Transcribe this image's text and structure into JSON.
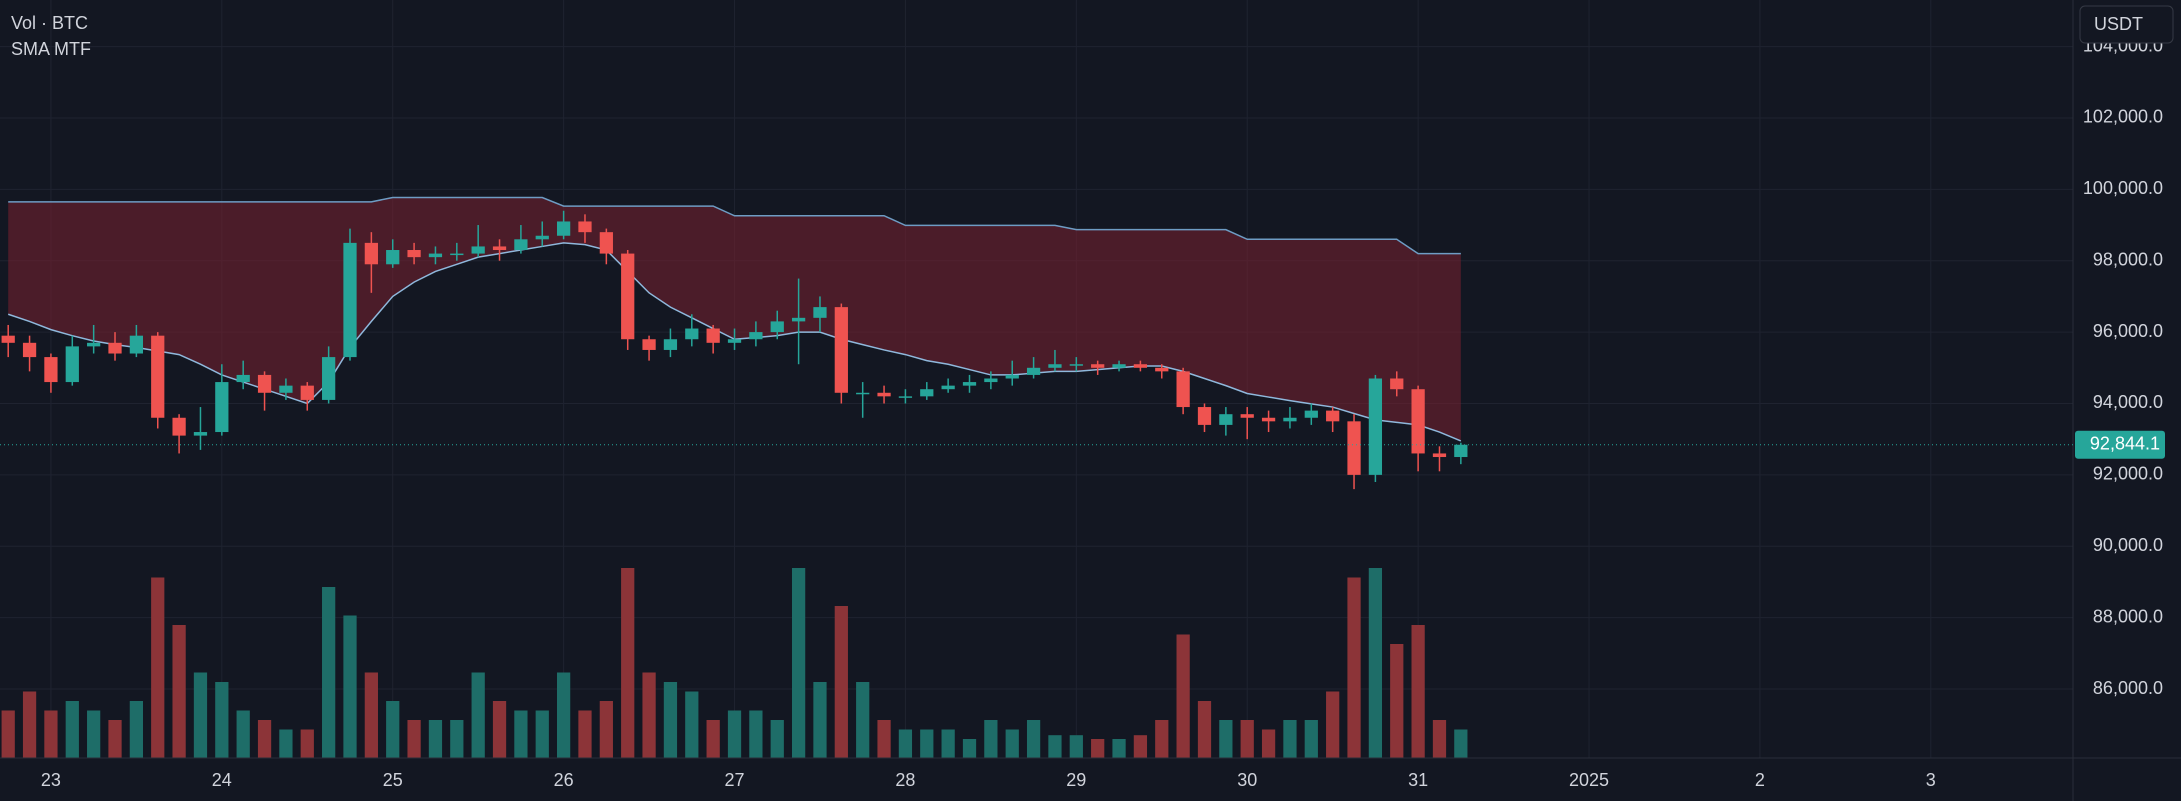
{
  "chart_data": {
    "type": "candlestick",
    "volume_title": "Vol · BTC",
    "indicator_title": "SMA MTF",
    "currency": "USDT",
    "last_price": {
      "value": 92844.1,
      "label": "92,844.1"
    },
    "up_color": "#26a69a",
    "down_color": "#ef5350",
    "volume_up_color": "#1e6d68",
    "volume_down_color": "#8c3438",
    "grid": true,
    "xlim": [
      22.702,
      34.832
    ],
    "ylim": [
      84067,
      105305
    ],
    "xticks": [
      23,
      24,
      25,
      26,
      27,
      28,
      29,
      30,
      31,
      {
        "value": 32,
        "label": "2025"
      },
      {
        "value": 33,
        "label": "2"
      },
      {
        "value": 34,
        "label": "3"
      }
    ],
    "yticks": [
      {
        "value": 86000,
        "label": "86,000.0"
      },
      {
        "value": 88000,
        "label": "88,000.0"
      },
      {
        "value": 90000,
        "label": "90,000.0"
      },
      {
        "value": 92000,
        "label": "92,000.0"
      },
      {
        "value": 94000,
        "label": "94,000.0"
      },
      {
        "value": 96000,
        "label": "96,000.0"
      },
      {
        "value": 98000,
        "label": "98,000.0"
      },
      {
        "value": 100000,
        "label": "100,000.0"
      },
      {
        "value": 102000,
        "label": "102,000.0"
      },
      {
        "value": 104000,
        "label": "104,000.0"
      }
    ],
    "x": [
      22.75,
      22.875,
      23,
      23.125,
      23.25,
      23.375,
      23.5,
      23.625,
      23.75,
      23.875,
      24,
      24.125,
      24.25,
      24.375,
      24.5,
      24.625,
      24.75,
      24.875,
      25,
      25.125,
      25.25,
      25.375,
      25.5,
      25.625,
      25.75,
      25.875,
      26,
      26.125,
      26.25,
      26.375,
      26.5,
      26.625,
      26.75,
      26.875,
      27,
      27.125,
      27.25,
      27.375,
      27.5,
      27.625,
      27.75,
      27.875,
      28,
      28.125,
      28.25,
      28.375,
      28.5,
      28.625,
      28.75,
      28.875,
      29,
      29.125,
      29.25,
      29.375,
      29.5,
      29.625,
      29.75,
      29.875,
      30,
      30.125,
      30.25,
      30.375,
      30.5,
      30.625,
      30.75,
      30.875,
      31,
      31.125,
      31.25
    ],
    "open": [
      95900,
      95700,
      95300,
      94600,
      95600,
      95700,
      95400,
      95900,
      93600,
      93100,
      93200,
      94600,
      94800,
      94300,
      94500,
      94100,
      95300,
      98500,
      97900,
      98300,
      98100,
      98200,
      98200,
      98400,
      98300,
      98600,
      98700,
      99100,
      98800,
      98200,
      95800,
      95500,
      95800,
      96100,
      95700,
      95800,
      96000,
      96300,
      96400,
      96700,
      94300,
      94300,
      94200,
      94200,
      94400,
      94500,
      94600,
      94700,
      94800,
      95000,
      95100,
      95100,
      95000,
      95100,
      95000,
      94900,
      93900,
      93400,
      93700,
      93600,
      93500,
      93600,
      93800,
      93500,
      92000,
      94700,
      94400,
      92600,
      92500
    ],
    "high": [
      96200,
      95900,
      95400,
      95900,
      96200,
      96000,
      96200,
      96000,
      93700,
      93900,
      95100,
      95200,
      94900,
      94700,
      94600,
      95600,
      98900,
      98800,
      98600,
      98500,
      98400,
      98500,
      99000,
      98600,
      99000,
      99100,
      99400,
      99300,
      98900,
      98300,
      95900,
      96100,
      96500,
      96200,
      96100,
      96300,
      96600,
      97500,
      97000,
      96800,
      94600,
      94500,
      94400,
      94600,
      94700,
      94800,
      94900,
      95200,
      95300,
      95500,
      95300,
      95200,
      95200,
      95200,
      95100,
      95000,
      94000,
      93900,
      93900,
      93800,
      93900,
      94000,
      93900,
      93700,
      94800,
      94900,
      94500,
      92800,
      92900
    ],
    "low": [
      95300,
      94900,
      94300,
      94500,
      95400,
      95200,
      95300,
      93300,
      92600,
      92700,
      93100,
      94400,
      93800,
      94100,
      93800,
      94000,
      95200,
      97100,
      97800,
      97900,
      97900,
      98000,
      98100,
      98000,
      98200,
      98400,
      98600,
      98500,
      97900,
      95500,
      95200,
      95300,
      95600,
      95400,
      95500,
      95600,
      95800,
      95100,
      96000,
      94000,
      93600,
      94000,
      94000,
      94100,
      94300,
      94300,
      94400,
      94500,
      94700,
      94900,
      94900,
      94800,
      94900,
      94900,
      94700,
      93700,
      93200,
      93100,
      93000,
      93200,
      93300,
      93400,
      93200,
      91600,
      91800,
      94200,
      92100,
      92100,
      92300
    ],
    "close": [
      95700,
      95300,
      94600,
      95600,
      95700,
      95400,
      95900,
      93600,
      93100,
      93200,
      94600,
      94800,
      94300,
      94500,
      94100,
      95300,
      98500,
      97900,
      98300,
      98100,
      98200,
      98200,
      98400,
      98300,
      98600,
      98700,
      99100,
      98800,
      98200,
      95800,
      95500,
      95800,
      96100,
      95700,
      95800,
      96000,
      96300,
      96400,
      96700,
      94300,
      94300,
      94200,
      94200,
      94400,
      94500,
      94600,
      94700,
      94800,
      95000,
      95100,
      95100,
      95000,
      95100,
      95000,
      94900,
      93900,
      93400,
      93700,
      93600,
      93500,
      93600,
      93800,
      93500,
      92000,
      94700,
      94400,
      92600,
      92500,
      92844.1
    ],
    "volume": [
      25,
      35,
      25,
      30,
      25,
      20,
      30,
      95,
      70,
      45,
      40,
      25,
      20,
      15,
      15,
      90,
      75,
      45,
      30,
      20,
      20,
      20,
      45,
      30,
      25,
      25,
      45,
      25,
      30,
      100,
      45,
      40,
      35,
      20,
      25,
      25,
      20,
      100,
      40,
      80,
      40,
      20,
      15,
      15,
      15,
      10,
      20,
      15,
      20,
      12,
      12,
      10,
      10,
      12,
      20,
      65,
      30,
      20,
      20,
      15,
      20,
      20,
      35,
      95,
      100,
      60,
      70,
      20,
      15
    ],
    "sma": {
      "color": "#8fb8dc",
      "values": [
        96500,
        96300,
        96070,
        95900,
        95750,
        95650,
        95570,
        95470,
        95370,
        95100,
        94800,
        94600,
        94400,
        94200,
        94000,
        94600,
        95570,
        96300,
        97000,
        97400,
        97700,
        97900,
        98100,
        98200,
        98300,
        98400,
        98500,
        98450,
        98300,
        97700,
        97100,
        96700,
        96400,
        96100,
        95800,
        95850,
        95900,
        96000,
        96000,
        95800,
        95650,
        95500,
        95370,
        95200,
        95100,
        94950,
        94800,
        94800,
        94850,
        94900,
        94900,
        94950,
        95000,
        95050,
        95050,
        94900,
        94700,
        94500,
        94280,
        94180,
        94080,
        93990,
        93900,
        93720,
        93540,
        93470,
        93400,
        93200,
        92950
      ]
    },
    "band_upper": {
      "color": "#6e9cc4",
      "fill": "rgba(122,32,48,0.55)",
      "values": [
        99650,
        99650,
        99650,
        99650,
        99650,
        99650,
        99650,
        99650,
        99650,
        99650,
        99650,
        99650,
        99650,
        99650,
        99650,
        99650,
        99650,
        99650,
        99770,
        99770,
        99770,
        99770,
        99770,
        99770,
        99770,
        99770,
        99530,
        99530,
        99530,
        99530,
        99530,
        99530,
        99530,
        99530,
        99260,
        99260,
        99260,
        99260,
        99260,
        99260,
        99260,
        99260,
        98990,
        98990,
        98990,
        98990,
        98990,
        98990,
        98990,
        98990,
        98870,
        98870,
        98870,
        98870,
        98870,
        98870,
        98870,
        98870,
        98600,
        98600,
        98600,
        98600,
        98600,
        98600,
        98600,
        98600,
        98200,
        98200,
        98200
      ]
    }
  }
}
